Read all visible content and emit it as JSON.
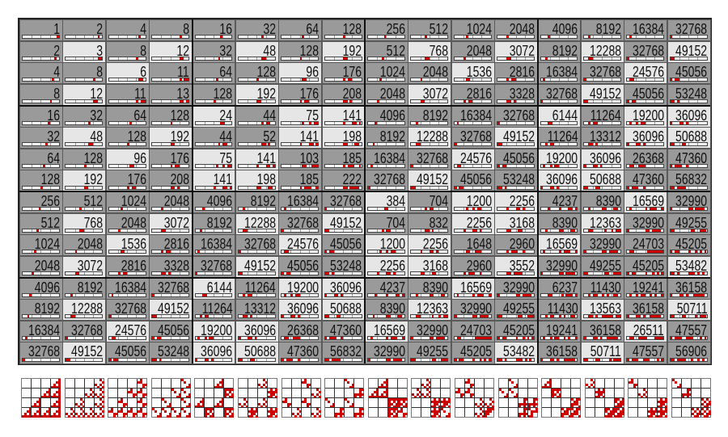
{
  "colors": {
    "gray": "#9a9a9a",
    "light": "#e6e6e6",
    "bit_on": "#cc0000",
    "bar_bg": "#ffffff"
  },
  "grid": {
    "values": [
      [
        1,
        2,
        4,
        8,
        16,
        32,
        64,
        128,
        256,
        512,
        1024,
        2048,
        4096,
        8192,
        16384,
        32768
      ],
      [
        2,
        3,
        8,
        12,
        32,
        48,
        128,
        192,
        512,
        768,
        2048,
        3072,
        8192,
        12288,
        32768,
        49152
      ],
      [
        4,
        8,
        6,
        11,
        64,
        128,
        96,
        176,
        1024,
        2048,
        1536,
        2816,
        16384,
        32768,
        24576,
        45056
      ],
      [
        8,
        12,
        11,
        13,
        128,
        192,
        176,
        208,
        2048,
        3072,
        2816,
        3328,
        32768,
        49152,
        45056,
        53248
      ],
      [
        16,
        32,
        64,
        128,
        24,
        44,
        75,
        141,
        4096,
        8192,
        16384,
        32768,
        6144,
        11264,
        19200,
        36096
      ],
      [
        32,
        48,
        128,
        192,
        44,
        52,
        141,
        198,
        8192,
        12288,
        32768,
        49152,
        11264,
        13312,
        36096,
        50688
      ],
      [
        64,
        128,
        96,
        176,
        75,
        141,
        103,
        185,
        16384,
        32768,
        24576,
        45056,
        19200,
        36096,
        26368,
        47360
      ],
      [
        128,
        192,
        176,
        208,
        141,
        198,
        185,
        222,
        32768,
        49152,
        45056,
        53248,
        36096,
        50688,
        47360,
        56832
      ],
      [
        256,
        512,
        1024,
        2048,
        4096,
        8192,
        16384,
        32768,
        384,
        704,
        1200,
        2256,
        4237,
        8390,
        16569,
        32990
      ],
      [
        512,
        768,
        2048,
        3072,
        8192,
        12288,
        32768,
        49152,
        704,
        832,
        2256,
        3168,
        8390,
        12363,
        32990,
        49255
      ],
      [
        1024,
        2048,
        1536,
        2816,
        16384,
        32768,
        24576,
        45056,
        1200,
        2256,
        1648,
        2960,
        16569,
        32990,
        24703,
        45205
      ],
      [
        2048,
        3072,
        2816,
        3328,
        32768,
        49152,
        45056,
        53248,
        2256,
        3168,
        2960,
        3552,
        32990,
        49255,
        45205,
        53482
      ],
      [
        4096,
        8192,
        16384,
        32768,
        6144,
        11264,
        19200,
        36096,
        4237,
        8390,
        16569,
        32990,
        6237,
        11430,
        19241,
        36158
      ],
      [
        8192,
        12288,
        32768,
        49152,
        11264,
        13312,
        36096,
        50688,
        8390,
        12363,
        32990,
        49255,
        11430,
        13563,
        36158,
        50711
      ],
      [
        16384,
        32768,
        24576,
        45056,
        19200,
        36096,
        26368,
        47360,
        16569,
        32990,
        24703,
        45205,
        19241,
        36158,
        26511,
        47557
      ],
      [
        32768,
        49152,
        45056,
        53248,
        36096,
        50688,
        47360,
        56832,
        32990,
        49255,
        45205,
        53482,
        36158,
        50711,
        47557,
        56906
      ]
    ],
    "shading": [
      "GGGGGGGGGGGGGGGG",
      "GLGLGLGLGLGLGLGL",
      "GGLGGGLGGGLGGGLG",
      "GLGGGLGGGLGGGLGG",
      "GGGGLGLLGGGGLGLL",
      "GLGLGGLLGLGLGGLL",
      "GGLGLLGGGGLGLLGG",
      "GLGGLLGGGLGGLLGG",
      "GGGGGGGGLGLLGGLG",
      "GLGLGLGLGGLLGLGG",
      "GGLGGGLGLLGGLGGG",
      "GLGGGLGGLLGLGGGL",
      "GGGGLGLLGGLGGGGG",
      "GLGLGGLLGLGGGLGL",
      "GGLGLLGGLGGGGGLG",
      "GLGGLLGGGGGLGLGG"
    ],
    "bits": 16
  },
  "bit_patterns": {
    "count": 16,
    "order": "most-significant-first"
  }
}
